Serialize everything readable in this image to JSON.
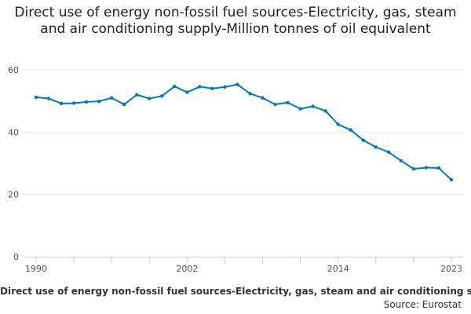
{
  "chart_data": {
    "type": "line",
    "title": "Direct use of energy non-fossil fuel sources-Electricity, gas, steam and air conditioning supply-Million tonnes of oil equivalent",
    "xlabel": "",
    "ylabel": "",
    "x": [
      1990,
      1991,
      1992,
      1993,
      1994,
      1995,
      1996,
      1997,
      1998,
      1999,
      2000,
      2001,
      2002,
      2003,
      2004,
      2005,
      2006,
      2007,
      2008,
      2009,
      2010,
      2011,
      2012,
      2013,
      2014,
      2015,
      2016,
      2017,
      2018,
      2019,
      2020,
      2021,
      2022,
      2023
    ],
    "series": [
      {
        "name": "Direct use of energy non-fossil fuel sources-Electricity, gas, steam and air conditioning supply-Million tonnes of oil equivalent",
        "values": [
          51.2,
          50.8,
          49.2,
          49.3,
          49.7,
          49.9,
          51.0,
          48.9,
          52.0,
          50.8,
          51.6,
          54.7,
          52.8,
          54.6,
          54.0,
          54.5,
          55.3,
          52.4,
          51.0,
          48.9,
          49.5,
          47.5,
          48.3,
          46.8,
          42.5,
          40.7,
          37.4,
          35.2,
          33.6,
          30.8,
          28.2,
          28.6,
          28.5,
          24.7
        ],
        "color": "#0077bb"
      }
    ],
    "xlim": [
      1990,
      2023
    ],
    "ylim": [
      0,
      60
    ],
    "yticks": [
      0,
      20,
      40,
      60
    ],
    "xticks": [
      1990,
      2002,
      2014,
      2023
    ],
    "grid": true,
    "legend": "bottom",
    "legend_text": "Direct use of energy non-fossil fuel sources-Electricity, gas, steam and air conditioning supply-Million tonnes of oil equivalent",
    "source_text": "Source: Eurostat"
  }
}
